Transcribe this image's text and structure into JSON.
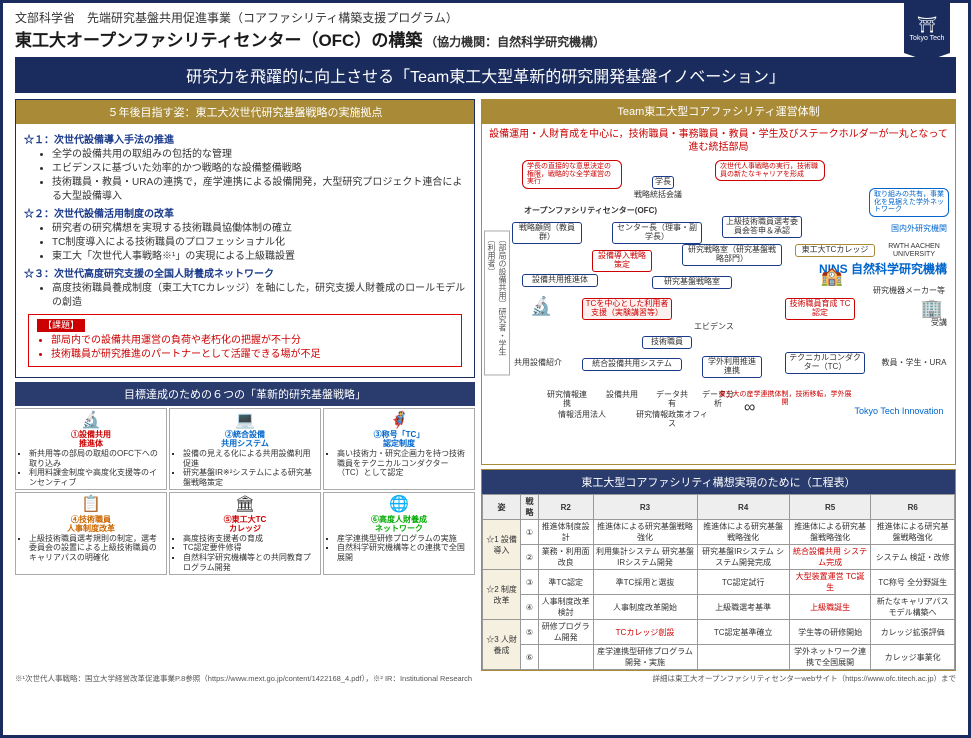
{
  "header": {
    "sub": "文部科学省　先端研究基盤共用促進事業（コアファシリティ構築支援プログラム）",
    "main": "東工大オープンファシリティセンター（OFC）の構築",
    "coop": "（協力機関：自然科学研究機構）",
    "logo_top": "⛩",
    "logo_text": "Tokyo Tech"
  },
  "banner": "研究力を飛躍的に向上させる「Team東工大型革新的研究開発基盤イノベーション」",
  "left": {
    "vision_head": "５年後目指す姿：東工大次世代研究基盤戦略の実施拠点",
    "stars": [
      {
        "title": "☆１：次世代設備導入手法の推進",
        "bullets": [
          "全学の設備共用の取組みの包括的な管理",
          "エビデンスに基づいた効率的かつ戦略的な設備整備戦略",
          "技術職員・教員・URAの連携で，産学連携による設備開発，大型研究プロジェクト連合による大型設備導入"
        ]
      },
      {
        "title": "☆２：次世代設備活用制度の改革",
        "bullets": [
          "研究者の研究構想を実現する技術職員協働体制の確立",
          "TC制度導入による技術職員のプロフェッショナル化",
          "東工大「次世代人事戦略※¹」の実現による上級職設置"
        ]
      },
      {
        "title": "☆３：次世代高度研究支援の全国人財養成ネットワーク",
        "bullets": [
          "高度技術職員養成制度（東工大TCカレッジ）を軸にした，研究支援人財養成のロールモデルの創造"
        ]
      }
    ],
    "issue_label": "【課題】",
    "issues": [
      "部局内での設備共用運営の負荷や老朽化の把握が不十分",
      "技術職員が研究推進のパートナーとして活躍できる場が不足"
    ],
    "six_head": "目標達成のための６つの「革新的研究基盤戦略」",
    "six": [
      {
        "num": "①設備共用",
        "sub": "推進体",
        "icon": "🔬",
        "items": [
          "新共用等の部局の取組のOFC下への取り込み",
          "利用料課金制度や高度化支援等のインセンティブ"
        ]
      },
      {
        "num": "②統合設備",
        "sub": "共用システム",
        "icon": "💻",
        "items": [
          "設備の見える化による共用設備利用促進",
          "研究基盤IR※²システムによる研究基盤戦略策定"
        ]
      },
      {
        "num": "③称号「TC」",
        "sub": "認定制度",
        "icon": "🦸",
        "items": [
          "高い技術力・研究企画力を持つ技術職員をテクニカルコンダクター（TC）として認定"
        ]
      },
      {
        "num": "④技術職員",
        "sub": "人事制度改革",
        "icon": "📋",
        "items": [
          "上級技術職員選考規則の制定，選考委員会の設置による上級技術職員のキャリアパスの明確化"
        ]
      },
      {
        "num": "⑤東工大TC",
        "sub": "カレッジ",
        "icon": "🏛",
        "items": [
          "高度技術支援者の育成",
          "TC認定要件修得",
          "自然科学研究機構等との共同教育プログラム開発"
        ]
      },
      {
        "num": "⑥高度人財養成",
        "sub": "ネットワーク",
        "icon": "🌐",
        "items": [
          "産学連携型研修プログラムの実施",
          "自然科学研究機構等との連携で全国展開"
        ]
      }
    ]
  },
  "right": {
    "org_head": "Team東工大型コアファシリティ運営体制",
    "org_caption": "設備運用・人財育成を中心に，技術職員・事務職員・教員・学生及びステークホルダーが一丸となって進む統括部局",
    "callouts": {
      "c1": "学長の直接的な意思決定の権限，戦略的な全学運営の実行",
      "c2": "次世代人事戦略の実行，技術職員の新たなキャリアを形成",
      "c3": "取り組みの共有，事業化を見据えた学外ネットワーク"
    },
    "nodes": {
      "top": "戦略統括会議",
      "gakucho": "学長",
      "ofc_label": "オープンファシリティセンター(OFC)",
      "komon": "戦略顧問（教員群）",
      "center": "センター長（理事・副学長）",
      "shonin": "上級技術職員選考委員会答申＆承認",
      "kenkyusei": "研究戦略室（研究基盤戦略部門）",
      "dounyu": "設備導入戦略策定",
      "suishin": "設備共用推進体",
      "kibanshitsu": "研究基盤戦略室",
      "tc_center": "TCを中心とした利用者支援（実験講習等）",
      "gijutsu": "技術職員",
      "evidence": "エビデンス",
      "tc_ikusei": "技術職員育成 TC認定",
      "kyoyo": "共用設備紹介",
      "togo": "統合設備共用システム",
      "gakugai": "学外利用推進連携",
      "tc": "テクニカルコンダクター（TC）",
      "college": "東工大TCカレッジ",
      "kokunai": "国内外研究機関",
      "rwth": "RWTH AACHEN UNIVERSITY",
      "nins": "NINS 自然科学研究機構",
      "maker": "研究機器メーカー等",
      "juko": "受講",
      "kyoin": "教員・学生・URA",
      "innov": "Tokyo Tech Innovation",
      "tti_note": "東工大の産学連携体制，技術移転，学外展開",
      "data1": "研究情報連携",
      "data2": "設備共用",
      "data3": "データ共有",
      "data4": "データ分析",
      "joho": "情報活用法人",
      "joho2": "研究情報政策オフィス",
      "vert": "〔部局の設備共用〕研究者・学生〔利用者〕"
    },
    "gantt_head": "東工大型コアファシリティ構想実現のために（工程表）",
    "gantt_cols": [
      "姿",
      "戦略",
      "R2",
      "R3",
      "R4",
      "R5",
      "R6"
    ],
    "gantt_rows": [
      {
        "rowhead": "☆1 設備導入",
        "cells": [
          [
            "①",
            "推進体制度設計",
            "推進体による研究基盤戦略強化",
            "推進体による研究基盤戦略強化",
            "推進体による研究基盤戦略強化",
            "推進体による研究基盤戦略強化"
          ],
          [
            "②",
            "業務・利用面改良",
            "利用集計システム 研究基盤IRシステム開発",
            "研究基盤IRシステム システム開発完成",
            "統合設備共用 システム完成",
            "システム 検証・改修"
          ]
        ]
      },
      {
        "rowhead": "☆2 制度改革",
        "cells": [
          [
            "③",
            "準TC認定",
            "準TC採用と選抜",
            "TC認定試行",
            "大型装置運営 TC誕生",
            "TC称号 全分野誕生"
          ],
          [
            "④",
            "人事制度改革検討",
            "人事制度改革開始",
            "上級職選考基準",
            "上級職誕生",
            "新たなキャリアパスモデル構築へ"
          ]
        ]
      },
      {
        "rowhead": "☆3 人財養成",
        "cells": [
          [
            "⑤",
            "研修プログラム開発",
            "TCカレッジ創設",
            "TC認定基準確立",
            "学生等の研修開始",
            "カレッジ拡張評価"
          ],
          [
            "⑥",
            "",
            "産学連携型研修プログラム開発・実施",
            "",
            "学外ネットワーク連携で全国展開",
            "カレッジ事業化"
          ]
        ]
      }
    ],
    "gantt_red_cells": [
      "統合設備共用 システム完成",
      "大型装置運営 TC誕生",
      "上級職誕生",
      "TCカレッジ創設"
    ]
  },
  "footnote": {
    "left": "※¹次世代人事戦略：国立大学経営改革促進事業P.8参照（https://www.mext.go.jp/content/1422168_4.pdf），※² IR：Institutional Research",
    "right": "詳細は東工大オープンファシリティセンターwebサイト（https://www.ofc.titech.ac.jp）まで"
  },
  "colors": {
    "navy": "#1a2c5e",
    "gold": "#a98a36",
    "red": "#c00020",
    "blue": "#0055aa"
  }
}
